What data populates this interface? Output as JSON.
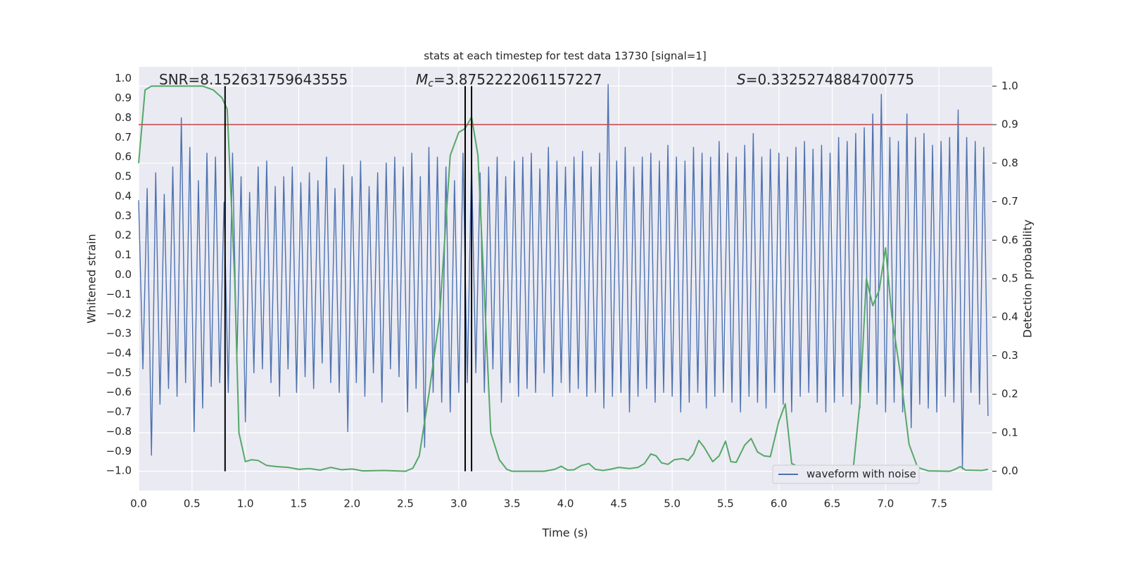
{
  "chart_data": {
    "type": "line",
    "title": "stats at each timestep for test data 13730 [signal=1]",
    "xlabel": "Time (s)",
    "ylabel": "Whitened strain",
    "y2label": "Detection probability",
    "xlim": [
      0,
      8.0
    ],
    "ylim": [
      -1.1,
      1.06
    ],
    "y2lim": [
      -0.05,
      1.05
    ],
    "grid": true,
    "legend": "lower right",
    "xticks": [
      {
        "value": 0,
        "label": "0.0"
      },
      0.5,
      {
        "value": 1,
        "label": "1.0"
      },
      1.5,
      {
        "value": 2,
        "label": "2.0"
      },
      2.5,
      {
        "value": 3,
        "label": "3.0"
      },
      3.5,
      {
        "value": 4,
        "label": "4.0"
      },
      4.5,
      {
        "value": 5,
        "label": "5.0"
      },
      5.5,
      {
        "value": 6,
        "label": "6.0"
      },
      6.5,
      {
        "value": 7,
        "label": "7.0"
      },
      7.5
    ],
    "yticks": [
      {
        "value": -1,
        "label": "−1.0"
      },
      {
        "value": -0.9,
        "label": "−0.9"
      },
      {
        "value": -0.8,
        "label": "−0.8"
      },
      {
        "value": -0.7,
        "label": "−0.7"
      },
      {
        "value": -0.6,
        "label": "−0.6"
      },
      {
        "value": -0.5,
        "label": "−0.5"
      },
      {
        "value": -0.4,
        "label": "−0.4"
      },
      {
        "value": -0.3,
        "label": "−0.3"
      },
      {
        "value": -0.2,
        "label": "−0.2"
      },
      {
        "value": -0.1,
        "label": "−0.1"
      },
      {
        "value": 0,
        "label": "0.0"
      },
      0.1,
      0.2,
      0.3,
      0.4,
      0.5,
      0.6,
      0.7,
      0.8,
      0.9,
      {
        "value": 1,
        "label": "1.0"
      }
    ],
    "y2ticks": [
      {
        "value": 0,
        "label": "0.0"
      },
      0.1,
      0.2,
      0.3,
      0.4,
      0.5,
      0.6,
      0.7,
      0.8,
      0.9,
      {
        "value": 1,
        "label": "1.0"
      }
    ],
    "annotations": [
      {
        "text": "SNR=8.152631759643555"
      },
      {
        "symbol": "M",
        "subscript": "c",
        "text": "=3.8752222061157227"
      },
      {
        "symbol": "S",
        "text": "=0.3325274884700775"
      }
    ],
    "threshold": {
      "value": 0.9,
      "axis": "y2",
      "color": "#c44e52"
    },
    "markers": {
      "x": [
        0.81,
        3.06,
        3.12
      ],
      "y2range": [
        0,
        1
      ],
      "color": "#000000"
    },
    "series": [
      {
        "name": "waveform with noise",
        "color": "#4c72b0",
        "x": [
          0,
          0.04,
          0.08,
          0.12,
          0.16,
          0.2,
          0.24,
          0.28,
          0.32,
          0.36,
          0.4,
          0.44,
          0.48,
          0.52,
          0.56,
          0.6,
          0.64,
          0.68,
          0.72,
          0.76,
          0.8,
          0.84,
          0.88,
          0.92,
          0.96,
          1,
          1.04,
          1.08,
          1.12,
          1.16,
          1.2,
          1.24,
          1.28,
          1.32,
          1.36,
          1.4,
          1.44,
          1.48,
          1.52,
          1.56,
          1.6,
          1.64,
          1.68,
          1.72,
          1.76,
          1.8,
          1.84,
          1.88,
          1.92,
          1.96,
          2,
          2.04,
          2.08,
          2.12,
          2.16,
          2.2,
          2.24,
          2.28,
          2.32,
          2.36,
          2.4,
          2.44,
          2.48,
          2.52,
          2.56,
          2.6,
          2.64,
          2.68,
          2.72,
          2.76,
          2.8,
          2.84,
          2.88,
          2.92,
          2.96,
          3,
          3.04,
          3.08,
          3.12,
          3.16,
          3.2,
          3.24,
          3.28,
          3.32,
          3.36,
          3.4,
          3.44,
          3.48,
          3.52,
          3.56,
          3.6,
          3.64,
          3.68,
          3.72,
          3.76,
          3.8,
          3.84,
          3.88,
          3.92,
          3.96,
          4,
          4.04,
          4.08,
          4.12,
          4.16,
          4.2,
          4.24,
          4.28,
          4.32,
          4.36,
          4.4,
          4.44,
          4.48,
          4.52,
          4.56,
          4.6,
          4.64,
          4.68,
          4.72,
          4.76,
          4.8,
          4.84,
          4.88,
          4.92,
          4.96,
          5,
          5.04,
          5.08,
          5.12,
          5.16,
          5.2,
          5.24,
          5.28,
          5.32,
          5.36,
          5.4,
          5.44,
          5.48,
          5.52,
          5.56,
          5.6,
          5.64,
          5.68,
          5.72,
          5.76,
          5.8,
          5.84,
          5.88,
          5.92,
          5.96,
          6,
          6.04,
          6.08,
          6.12,
          6.16,
          6.2,
          6.24,
          6.28,
          6.32,
          6.36,
          6.4,
          6.44,
          6.48,
          6.52,
          6.56,
          6.6,
          6.64,
          6.68,
          6.72,
          6.76,
          6.8,
          6.84,
          6.88,
          6.92,
          6.96,
          7,
          7.04,
          7.08,
          7.12,
          7.16,
          7.2,
          7.24,
          7.28,
          7.32,
          7.36,
          7.4,
          7.44,
          7.48,
          7.52,
          7.56,
          7.6,
          7.64,
          7.68,
          7.72,
          7.76,
          7.8,
          7.84,
          7.88,
          7.92,
          7.96
        ],
        "values": [
          0.38,
          -0.48,
          0.44,
          -0.92,
          0.52,
          -0.66,
          0.41,
          -0.58,
          0.55,
          -0.62,
          0.8,
          -0.55,
          0.65,
          -0.8,
          0.48,
          -0.68,
          0.62,
          -0.57,
          0.6,
          -0.55,
          0.37,
          -0.6,
          0.62,
          -0.45,
          0.5,
          -0.75,
          0.42,
          -0.5,
          0.55,
          -0.48,
          0.58,
          -0.55,
          0.45,
          -0.62,
          0.5,
          -0.48,
          0.55,
          -0.6,
          0.47,
          -0.52,
          0.52,
          -0.58,
          0.48,
          -0.45,
          0.6,
          -0.55,
          0.44,
          -0.6,
          0.56,
          -0.8,
          0.5,
          -0.55,
          0.58,
          -0.62,
          0.45,
          -0.5,
          0.52,
          -0.65,
          0.57,
          -0.48,
          0.6,
          -0.52,
          0.55,
          -0.7,
          0.62,
          -0.58,
          0.5,
          -0.88,
          0.65,
          -0.6,
          0.6,
          -0.65,
          0.55,
          -0.7,
          0.48,
          -0.6,
          0.62,
          -0.55,
          0.58,
          -0.5,
          0.52,
          -0.6,
          0.55,
          -0.48,
          0.6,
          -0.65,
          0.5,
          -0.55,
          0.58,
          -0.62,
          0.6,
          -0.58,
          0.62,
          -0.6,
          0.54,
          -0.5,
          0.65,
          -0.62,
          0.58,
          -0.55,
          0.55,
          -0.6,
          0.6,
          -0.58,
          0.63,
          -0.62,
          0.55,
          -0.6,
          0.62,
          -0.68,
          0.97,
          -0.62,
          0.58,
          -0.6,
          0.65,
          -0.7,
          0.55,
          -0.62,
          0.6,
          -0.58,
          0.62,
          -0.65,
          0.58,
          -0.6,
          0.66,
          -0.62,
          0.6,
          -0.7,
          0.58,
          -0.65,
          0.65,
          -0.6,
          0.62,
          -0.68,
          0.6,
          -0.62,
          0.68,
          -0.6,
          0.62,
          -0.65,
          0.6,
          -0.7,
          0.66,
          -0.62,
          0.72,
          -0.65,
          0.6,
          -0.68,
          0.64,
          -0.6,
          0.62,
          -0.66,
          0.6,
          -0.7,
          0.65,
          -0.62,
          0.68,
          -0.6,
          0.64,
          -0.65,
          0.66,
          -0.7,
          0.62,
          -0.65,
          0.7,
          -0.62,
          0.68,
          -0.66,
          0.72,
          -0.68,
          0.75,
          -0.6,
          0.82,
          -0.66,
          0.92,
          -0.7,
          0.7,
          -0.65,
          0.68,
          -0.7,
          0.82,
          -0.78,
          0.7,
          -0.66,
          0.72,
          -0.68,
          0.66,
          -0.7,
          0.68,
          -0.62,
          0.7,
          -0.65,
          0.84,
          -0.99,
          0.7,
          -0.6,
          0.68,
          -0.66,
          0.65,
          -0.72
        ]
      },
      {
        "axis": "y2",
        "color": "#55a868",
        "x": [
          0,
          0.06,
          0.12,
          0.6,
          0.7,
          0.78,
          0.83,
          0.9,
          0.94,
          1,
          1.06,
          1.12,
          1.2,
          1.3,
          1.4,
          1.5,
          1.6,
          1.7,
          1.8,
          1.9,
          2,
          2.1,
          2.3,
          2.5,
          2.57,
          2.63,
          2.72,
          2.82,
          2.92,
          3,
          3.06,
          3.12,
          3.18,
          3.25,
          3.3,
          3.38,
          3.45,
          3.5,
          3.8,
          3.9,
          3.96,
          4.02,
          4.08,
          4.15,
          4.22,
          4.28,
          4.35,
          4.42,
          4.5,
          4.6,
          4.68,
          4.74,
          4.8,
          4.85,
          4.9,
          4.96,
          5.02,
          5.1,
          5.15,
          5.2,
          5.25,
          5.3,
          5.38,
          5.44,
          5.5,
          5.55,
          5.6,
          5.68,
          5.74,
          5.8,
          5.86,
          5.92,
          6,
          6.06,
          6.12,
          6.2,
          6.26,
          6.34,
          6.42,
          6.55,
          6.65,
          6.7,
          6.76,
          6.82,
          6.88,
          6.94,
          7,
          7.06,
          7.14,
          7.22,
          7.3,
          7.4,
          7.6,
          7.65,
          7.7,
          7.75,
          7.9,
          7.96
        ],
        "values": [
          0.8,
          0.99,
          1,
          1,
          0.99,
          0.97,
          0.94,
          0.5,
          0.1,
          0.025,
          0.03,
          0.028,
          0.015,
          0.012,
          0.01,
          0.005,
          0.007,
          0.003,
          0.01,
          0.004,
          0.006,
          0.001,
          0.002,
          0,
          0.008,
          0.04,
          0.2,
          0.4,
          0.82,
          0.88,
          0.89,
          0.92,
          0.82,
          0.4,
          0.1,
          0.03,
          0.005,
          0,
          0,
          0.005,
          0.013,
          0.003,
          0.004,
          0.015,
          0.02,
          0.005,
          0.002,
          0.005,
          0.01,
          0.007,
          0.01,
          0.02,
          0.045,
          0.04,
          0.022,
          0.018,
          0.03,
          0.033,
          0.028,
          0.045,
          0.08,
          0.062,
          0.025,
          0.04,
          0.078,
          0.025,
          0.023,
          0.068,
          0.085,
          0.05,
          0.04,
          0.038,
          0.13,
          0.175,
          0.02,
          0.01,
          0.012,
          0.008,
          0.003,
          0.003,
          0.007,
          0.015,
          0.18,
          0.5,
          0.43,
          0.47,
          0.58,
          0.4,
          0.25,
          0.07,
          0.01,
          0.001,
          0,
          0.005,
          0.012,
          0.003,
          0.002,
          0.005
        ]
      }
    ]
  }
}
